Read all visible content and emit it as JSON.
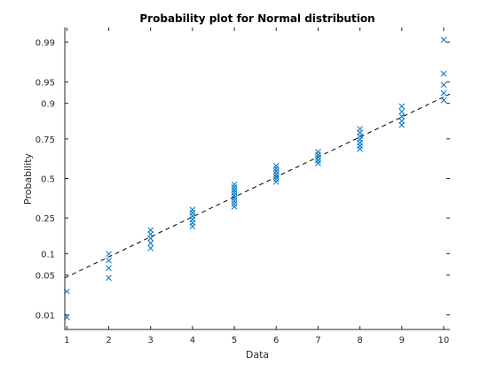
{
  "chart_data": {
    "type": "scatter",
    "title": "Probability plot for Normal distribution",
    "xlabel": "Data",
    "ylabel": "Probability",
    "xlim": [
      0.95,
      10.15
    ],
    "ylim": [
      0.005,
      0.995
    ],
    "y_scale": "normal-probability",
    "x_ticks": [
      1,
      2,
      3,
      4,
      5,
      6,
      7,
      8,
      9,
      10
    ],
    "y_ticks": [
      0.01,
      0.05,
      0.1,
      0.25,
      0.5,
      0.75,
      0.9,
      0.95,
      0.99
    ],
    "y_tick_labels": [
      "0.01",
      "0.05",
      "0.1",
      "0.25",
      "0.5",
      "0.75",
      "0.9",
      "0.95",
      "0.99"
    ],
    "marker": "x",
    "marker_color": "#0072BD",
    "reference_line": {
      "style": "dashed",
      "color": "#000000",
      "from": [
        0.95,
        0.045
      ],
      "to": [
        10.15,
        0.925
      ]
    },
    "points": [
      {
        "x": 1,
        "y": 0.009
      },
      {
        "x": 1,
        "y": 0.027
      },
      {
        "x": 2,
        "y": 0.045
      },
      {
        "x": 2,
        "y": 0.063
      },
      {
        "x": 2,
        "y": 0.081
      },
      {
        "x": 2,
        "y": 0.099
      },
      {
        "x": 3,
        "y": 0.117
      },
      {
        "x": 3,
        "y": 0.135
      },
      {
        "x": 3,
        "y": 0.153
      },
      {
        "x": 3,
        "y": 0.171
      },
      {
        "x": 3,
        "y": 0.189
      },
      {
        "x": 4,
        "y": 0.207
      },
      {
        "x": 4,
        "y": 0.225
      },
      {
        "x": 4,
        "y": 0.243
      },
      {
        "x": 4,
        "y": 0.261
      },
      {
        "x": 4,
        "y": 0.279
      },
      {
        "x": 4,
        "y": 0.297
      },
      {
        "x": 5,
        "y": 0.315
      },
      {
        "x": 5,
        "y": 0.333
      },
      {
        "x": 5,
        "y": 0.351
      },
      {
        "x": 5,
        "y": 0.369
      },
      {
        "x": 5,
        "y": 0.387
      },
      {
        "x": 5,
        "y": 0.405
      },
      {
        "x": 5,
        "y": 0.423
      },
      {
        "x": 5,
        "y": 0.441
      },
      {
        "x": 5,
        "y": 0.459
      },
      {
        "x": 6,
        "y": 0.477
      },
      {
        "x": 6,
        "y": 0.495
      },
      {
        "x": 6,
        "y": 0.513
      },
      {
        "x": 6,
        "y": 0.531
      },
      {
        "x": 6,
        "y": 0.549
      },
      {
        "x": 6,
        "y": 0.567
      },
      {
        "x": 6,
        "y": 0.585
      },
      {
        "x": 7,
        "y": 0.603
      },
      {
        "x": 7,
        "y": 0.621
      },
      {
        "x": 7,
        "y": 0.639
      },
      {
        "x": 7,
        "y": 0.657
      },
      {
        "x": 7,
        "y": 0.675
      },
      {
        "x": 8,
        "y": 0.693
      },
      {
        "x": 8,
        "y": 0.711
      },
      {
        "x": 8,
        "y": 0.729
      },
      {
        "x": 8,
        "y": 0.747
      },
      {
        "x": 8,
        "y": 0.765
      },
      {
        "x": 8,
        "y": 0.783
      },
      {
        "x": 8,
        "y": 0.801
      },
      {
        "x": 9,
        "y": 0.819
      },
      {
        "x": 9,
        "y": 0.837
      },
      {
        "x": 9,
        "y": 0.855
      },
      {
        "x": 9,
        "y": 0.873
      },
      {
        "x": 9,
        "y": 0.891
      },
      {
        "x": 10,
        "y": 0.909
      },
      {
        "x": 10,
        "y": 0.927
      },
      {
        "x": 10,
        "y": 0.945
      },
      {
        "x": 10,
        "y": 0.963
      },
      {
        "x": 10,
        "y": 0.991
      }
    ]
  }
}
